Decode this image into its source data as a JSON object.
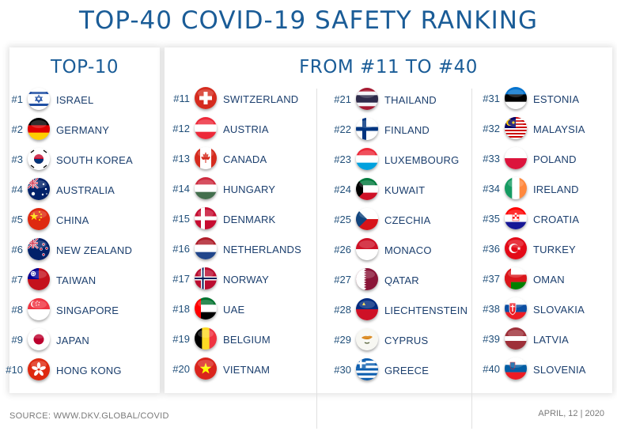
{
  "title": "TOP-40 COVID-19 SAFETY RANKING",
  "top10_heading": "TOP-10",
  "rest_heading": "FROM #11 TO #40",
  "footer": {
    "source": "SOURCE: WWW.DKV.GLOBAL/COVID",
    "date": "APRIL, 12 | 2020"
  },
  "columns": [
    [
      {
        "rank": "#1",
        "name": "ISRAEL",
        "flag": "israel-flag-icon"
      },
      {
        "rank": "#2",
        "name": "GERMANY",
        "flag": "germany-flag-icon"
      },
      {
        "rank": "#3",
        "name": "SOUTH KOREA",
        "flag": "south-korea-flag-icon"
      },
      {
        "rank": "#4",
        "name": "AUSTRALIA",
        "flag": "australia-flag-icon"
      },
      {
        "rank": "#5",
        "name": "CHINA",
        "flag": "china-flag-icon"
      },
      {
        "rank": "#6",
        "name": "NEW ZEALAND",
        "flag": "new-zealand-flag-icon"
      },
      {
        "rank": "#7",
        "name": "TAIWAN",
        "flag": "taiwan-flag-icon"
      },
      {
        "rank": "#8",
        "name": "SINGAPORE",
        "flag": "singapore-flag-icon"
      },
      {
        "rank": "#9",
        "name": "JAPAN",
        "flag": "japan-flag-icon"
      },
      {
        "rank": "#10",
        "name": "HONG KONG",
        "flag": "hong-kong-flag-icon"
      }
    ],
    [
      {
        "rank": "#11",
        "name": "SWITZERLAND",
        "flag": "switzerland-flag-icon"
      },
      {
        "rank": "#12",
        "name": "AUSTRIA",
        "flag": "austria-flag-icon"
      },
      {
        "rank": "#13",
        "name": "CANADA",
        "flag": "canada-flag-icon"
      },
      {
        "rank": "#14",
        "name": "HUNGARY",
        "flag": "hungary-flag-icon"
      },
      {
        "rank": "#15",
        "name": "DENMARK",
        "flag": "denmark-flag-icon"
      },
      {
        "rank": "#16",
        "name": "NETHERLANDS",
        "flag": "netherlands-flag-icon"
      },
      {
        "rank": "#17",
        "name": "NORWAY",
        "flag": "norway-flag-icon"
      },
      {
        "rank": "#18",
        "name": "UAE",
        "flag": "uae-flag-icon"
      },
      {
        "rank": "#19",
        "name": "BELGIUM",
        "flag": "belgium-flag-icon"
      },
      {
        "rank": "#20",
        "name": "VIETNAM",
        "flag": "vietnam-flag-icon"
      }
    ],
    [
      {
        "rank": "#21",
        "name": "THAILAND",
        "flag": "thailand-flag-icon"
      },
      {
        "rank": "#22",
        "name": "FINLAND",
        "flag": "finland-flag-icon"
      },
      {
        "rank": "#23",
        "name": "LUXEMBOURG",
        "flag": "luxembourg-flag-icon"
      },
      {
        "rank": "#24",
        "name": "KUWAIT",
        "flag": "kuwait-flag-icon"
      },
      {
        "rank": "#25",
        "name": "CZECHIA",
        "flag": "czechia-flag-icon"
      },
      {
        "rank": "#26",
        "name": "MONACO",
        "flag": "monaco-flag-icon"
      },
      {
        "rank": "#27",
        "name": "QATAR",
        "flag": "qatar-flag-icon"
      },
      {
        "rank": "#28",
        "name": "LIECHTENSTEIN",
        "flag": "liechtenstein-flag-icon"
      },
      {
        "rank": "#29",
        "name": "CYPRUS",
        "flag": "cyprus-flag-icon"
      },
      {
        "rank": "#30",
        "name": "GREECE",
        "flag": "greece-flag-icon"
      }
    ],
    [
      {
        "rank": "#31",
        "name": "ESTONIA",
        "flag": "estonia-flag-icon"
      },
      {
        "rank": "#32",
        "name": "MALAYSIA",
        "flag": "malaysia-flag-icon"
      },
      {
        "rank": "#33",
        "name": "POLAND",
        "flag": "poland-flag-icon"
      },
      {
        "rank": "#34",
        "name": "IRELAND",
        "flag": "ireland-flag-icon"
      },
      {
        "rank": "#35",
        "name": "CROATIA",
        "flag": "croatia-flag-icon"
      },
      {
        "rank": "#36",
        "name": "TURKEY",
        "flag": "turkey-flag-icon"
      },
      {
        "rank": "#37",
        "name": "OMAN",
        "flag": "oman-flag-icon"
      },
      {
        "rank": "#38",
        "name": "SLOVAKIA",
        "flag": "slovakia-flag-icon"
      },
      {
        "rank": "#39",
        "name": "LATVIA",
        "flag": "latvia-flag-icon"
      },
      {
        "rank": "#40",
        "name": "SLOVENIA",
        "flag": "slovenia-flag-icon"
      }
    ]
  ]
}
